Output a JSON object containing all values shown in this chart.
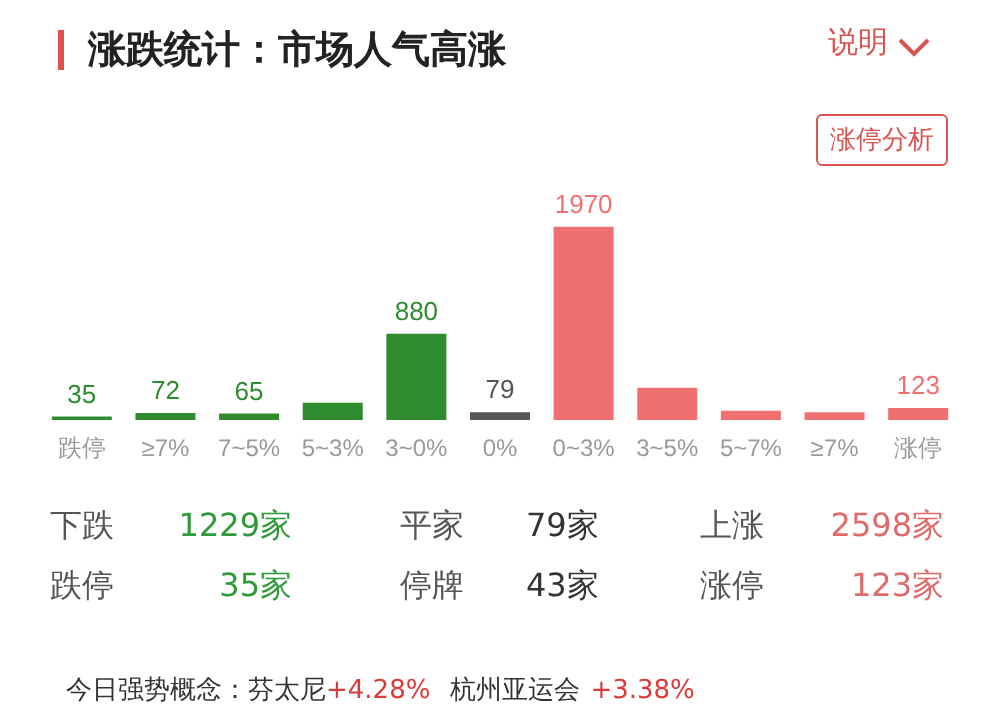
{
  "chart_data": {
    "type": "bar",
    "title": "涨跌统计：市场人气高涨",
    "categories": [
      "跌停",
      "≥7%",
      "7~5%",
      "5~3%",
      "3~0%",
      "0%",
      "0~3%",
      "3~5%",
      "5~7%",
      "≥7%",
      "涨停"
    ],
    "values": [
      35,
      72,
      65,
      177,
      880,
      79,
      1970,
      330,
      95,
      80,
      123
    ],
    "value_labels": [
      "35",
      "72",
      "65",
      null,
      "880",
      "79",
      "1970",
      null,
      null,
      null,
      "123"
    ],
    "colors": [
      "#2e8b2e",
      "#2e8b2e",
      "#2e8b2e",
      "#2e8b2e",
      "#2e8b2e",
      "#555555",
      "#f07070",
      "#f07070",
      "#f07070",
      "#f07070",
      "#f07070"
    ],
    "grid": false,
    "annotations": [
      "说明",
      "涨停分析",
      "下跌",
      "1229家",
      "平家",
      "79家",
      "上涨",
      "2598家",
      "跌停",
      "35家",
      "停牌",
      "43家",
      "涨停",
      "123家",
      "今日强势概念：",
      "芬太尼",
      "+4.28%",
      "杭州亚运会",
      "+3.38%"
    ]
  }
}
